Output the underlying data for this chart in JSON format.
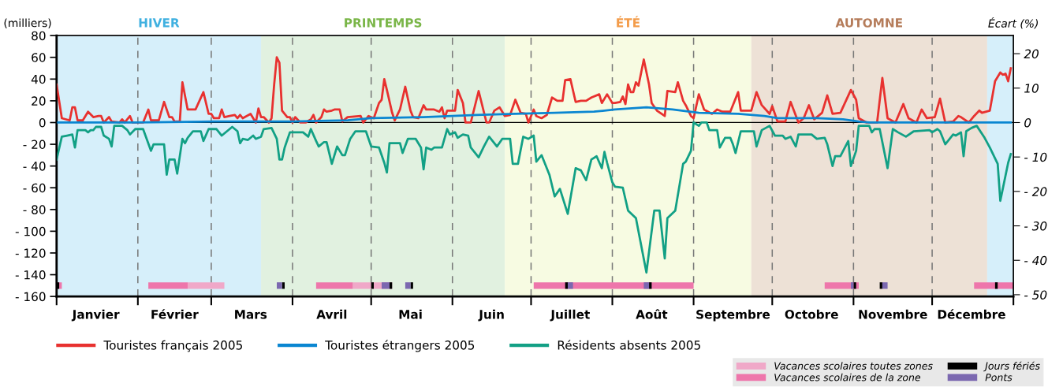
{
  "chart_data": {
    "type": "line",
    "ylabel": "(milliers)",
    "y2label": "Écart (%)",
    "xlim": [
      "2005-01-01",
      "2006-01-01"
    ],
    "xticks": [
      {
        "value": "2005-01-01",
        "label": null
      },
      {
        "value": "2005-02-01",
        "label": null
      },
      {
        "value": "2005-03-01",
        "label": null
      },
      {
        "value": "2005-04-01",
        "label": null
      },
      {
        "value": "2005-05-01",
        "label": null
      },
      {
        "value": "2005-06-01",
        "label": null
      },
      {
        "value": "2005-07-01",
        "label": null
      },
      {
        "value": "2005-08-01",
        "label": null
      },
      {
        "value": "2005-09-01",
        "label": null
      },
      {
        "value": "2005-10-01",
        "label": null
      },
      {
        "value": "2005-11-01",
        "label": null
      },
      {
        "value": "2005-12-01",
        "label": null
      },
      {
        "value": "2006-01-01",
        "label": null
      },
      {
        "value": "2005-01-16",
        "label": "Janvier"
      },
      {
        "value": "2005-02-15",
        "label": "Février"
      },
      {
        "value": "2005-03-16",
        "label": "Mars"
      },
      {
        "value": "2005-04-16",
        "label": "Avril"
      },
      {
        "value": "2005-05-16",
        "label": "Mai"
      },
      {
        "value": "2005-06-16",
        "label": "Juin"
      },
      {
        "value": "2005-07-16",
        "label": "Juillet"
      },
      {
        "value": "2005-08-16",
        "label": "Août"
      },
      {
        "value": "2005-09-16",
        "label": "Septembre"
      },
      {
        "value": "2005-10-16",
        "label": "Octobre"
      },
      {
        "value": "2005-11-16",
        "label": "Novembre"
      },
      {
        "value": "2005-12-16",
        "label": "Décembre"
      }
    ],
    "ylim": [
      -160,
      80
    ],
    "yticks": [
      {
        "value": -160,
        "label": "- 160"
      },
      {
        "value": -140,
        "label": "- 140"
      },
      {
        "value": -120,
        "label": "- 120"
      },
      {
        "value": -100,
        "label": "- 100"
      },
      {
        "value": -80,
        "label": "- 80"
      },
      {
        "value": -60,
        "label": "- 60"
      },
      {
        "value": -40,
        "label": "- 40"
      },
      {
        "value": -20,
        "label": "- 20"
      },
      {
        "value": 0,
        "label": "0"
      },
      {
        "value": 20,
        "label": "20"
      },
      {
        "value": 40,
        "label": "40"
      },
      {
        "value": 60,
        "label": "60"
      },
      {
        "value": 80,
        "label": "80"
      }
    ],
    "y2lim": [
      -50.5,
      25.25
    ],
    "y2ticks": [
      {
        "value": -50,
        "label": "- 50"
      },
      {
        "value": -40,
        "label": "- 40"
      },
      {
        "value": -30,
        "label": "- 30"
      },
      {
        "value": -20,
        "label": "- 20"
      },
      {
        "value": -10,
        "label": "- 10"
      },
      {
        "value": 0,
        "label": "0"
      },
      {
        "value": 10,
        "label": "10"
      },
      {
        "value": 20,
        "label": "20"
      }
    ],
    "legend": "bottom",
    "bands": [
      {
        "axis": "x",
        "from": "2005-01-01",
        "to": "2005-03-20",
        "label": "HIVER",
        "color": "#d6effa"
      },
      {
        "axis": "x",
        "from": "2005-03-20",
        "to": "2005-06-21",
        "label": "PRINTEMPS",
        "color": "#e1f1e0"
      },
      {
        "axis": "x",
        "from": "2005-06-21",
        "to": "2005-09-23",
        "label": "ÉTÉ",
        "color": "#f7fbe2"
      },
      {
        "axis": "x",
        "from": "2005-09-23",
        "to": "2005-12-22",
        "label": "AUTOMNE",
        "color": "#ede1d6"
      },
      {
        "axis": "x",
        "from": "2005-12-22",
        "to": "2006-01-01",
        "label": null,
        "color": "#d6effa"
      }
    ],
    "ref_lines": [
      {
        "axis": "x",
        "value": "2005-02-01",
        "color": "#777777",
        "line_style": "dashed"
      },
      {
        "axis": "x",
        "value": "2005-03-01",
        "color": "#777777",
        "line_style": "dashed"
      },
      {
        "axis": "x",
        "value": "2005-04-01",
        "color": "#777777",
        "line_style": "dashed"
      },
      {
        "axis": "x",
        "value": "2005-05-01",
        "color": "#777777",
        "line_style": "dashed"
      },
      {
        "axis": "x",
        "value": "2005-06-01",
        "color": "#777777",
        "line_style": "dashed"
      },
      {
        "axis": "x",
        "value": "2005-07-01",
        "color": "#777777",
        "line_style": "dashed"
      },
      {
        "axis": "x",
        "value": "2005-08-01",
        "color": "#777777",
        "line_style": "dashed"
      },
      {
        "axis": "x",
        "value": "2005-09-01",
        "color": "#777777",
        "line_style": "dashed"
      },
      {
        "axis": "x",
        "value": "2005-10-01",
        "color": "#777777",
        "line_style": "dashed"
      },
      {
        "axis": "x",
        "value": "2005-11-01",
        "color": "#777777",
        "line_style": "dashed"
      },
      {
        "axis": "x",
        "value": "2005-12-01",
        "color": "#777777",
        "line_style": "dashed"
      }
    ],
    "series": [
      {
        "name": "Touristes français 2005",
        "color": "#e8312f",
        "x": [
          "2005-01-01",
          "2005-01-03",
          "2005-01-06",
          "2005-01-07",
          "2005-01-08",
          "2005-01-09",
          "2005-01-11",
          "2005-01-13",
          "2005-01-15",
          "2005-01-17",
          "2005-01-18",
          "2005-01-19",
          "2005-01-21",
          "2005-01-22",
          "2005-01-25",
          "2005-01-26",
          "2005-01-27",
          "2005-01-29",
          "2005-01-30",
          "2005-02-03",
          "2005-02-05",
          "2005-02-06",
          "2005-02-09",
          "2005-02-11",
          "2005-02-13",
          "2005-02-14",
          "2005-02-15",
          "2005-02-17",
          "2005-02-18",
          "2005-02-20",
          "2005-02-23",
          "2005-02-26",
          "2005-02-28",
          "2005-03-01",
          "2005-03-02",
          "2005-03-04",
          "2005-03-05",
          "2005-03-06",
          "2005-03-08",
          "2005-03-10",
          "2005-03-11",
          "2005-03-12",
          "2005-03-13",
          "2005-03-16",
          "2005-03-18",
          "2005-03-19",
          "2005-03-20",
          "2005-03-21",
          "2005-03-23",
          "2005-03-24",
          "2005-03-25",
          "2005-03-26",
          "2005-03-27",
          "2005-03-28",
          "2005-03-30",
          "2005-03-31",
          "2005-04-01",
          "2005-04-02",
          "2005-04-04",
          "2005-04-06",
          "2005-04-08",
          "2005-04-09",
          "2005-04-10",
          "2005-04-12",
          "2005-04-13",
          "2005-04-14",
          "2005-04-16",
          "2005-04-17",
          "2005-04-19",
          "2005-04-20",
          "2005-04-22",
          "2005-04-27",
          "2005-04-28",
          "2005-04-30",
          "2005-05-02",
          "2005-05-04",
          "2005-05-05",
          "2005-05-06",
          "2005-05-07",
          "2005-05-09",
          "2005-05-10",
          "2005-05-12",
          "2005-05-14",
          "2005-05-16",
          "2005-05-17",
          "2005-05-19",
          "2005-05-21",
          "2005-05-22",
          "2005-05-25",
          "2005-05-27",
          "2005-05-28",
          "2005-05-29",
          "2005-05-30",
          "2005-06-02",
          "2005-06-03",
          "2005-06-05",
          "2005-06-06",
          "2005-06-08",
          "2005-06-11",
          "2005-06-14",
          "2005-06-15",
          "2005-06-17",
          "2005-06-19",
          "2005-06-20",
          "2005-06-21",
          "2005-06-23",
          "2005-06-25",
          "2005-06-27",
          "2005-06-29",
          "2005-06-30",
          "2005-07-02",
          "2005-07-03",
          "2005-07-05",
          "2005-07-07",
          "2005-07-09",
          "2005-07-11",
          "2005-07-13",
          "2005-07-14",
          "2005-07-16",
          "2005-07-18",
          "2005-07-20",
          "2005-07-22",
          "2005-07-24",
          "2005-07-27",
          "2005-07-28",
          "2005-07-30",
          "2005-08-01",
          "2005-08-02",
          "2005-08-04",
          "2005-08-05",
          "2005-08-06",
          "2005-08-07",
          "2005-08-08",
          "2005-08-09",
          "2005-08-10",
          "2005-08-11",
          "2005-08-13",
          "2005-08-15",
          "2005-08-16",
          "2005-08-18",
          "2005-08-21",
          "2005-08-22",
          "2005-08-25",
          "2005-08-26",
          "2005-08-28",
          "2005-08-29",
          "2005-08-31",
          "2005-09-01",
          "2005-09-03",
          "2005-09-05",
          "2005-09-08",
          "2005-09-10",
          "2005-09-12",
          "2005-09-15",
          "2005-09-18",
          "2005-09-19",
          "2005-09-23",
          "2005-09-25",
          "2005-09-27",
          "2005-09-30",
          "2005-10-01",
          "2005-10-03",
          "2005-10-06",
          "2005-10-08",
          "2005-10-11",
          "2005-10-13",
          "2005-10-15",
          "2005-10-17",
          "2005-10-20",
          "2005-10-22",
          "2005-10-24",
          "2005-10-27",
          "2005-10-31",
          "2005-11-02",
          "2005-11-03",
          "2005-11-06",
          "2005-11-10",
          "2005-11-12",
          "2005-11-14",
          "2005-11-17",
          "2005-11-20",
          "2005-11-22",
          "2005-11-25",
          "2005-11-27",
          "2005-11-29",
          "2005-12-02",
          "2005-12-04",
          "2005-12-06",
          "2005-12-09",
          "2005-12-11",
          "2005-12-12",
          "2005-12-15",
          "2005-12-17",
          "2005-12-19",
          "2005-12-20",
          "2005-12-23",
          "2005-12-25",
          "2005-12-27",
          "2005-12-28",
          "2005-12-29",
          "2005-12-30",
          "2005-12-31"
        ],
        "values": [
          35,
          4,
          2,
          14,
          14,
          2,
          2,
          10,
          5,
          6,
          6,
          0,
          5,
          1,
          0,
          3,
          0,
          6,
          0,
          0,
          12,
          2,
          2,
          19,
          5,
          5,
          1,
          1,
          37,
          12,
          12,
          28,
          8,
          8,
          4,
          4,
          12,
          5,
          6,
          7,
          4,
          7,
          4,
          8,
          0,
          13,
          5,
          5,
          0,
          4,
          35,
          60,
          55,
          11,
          5,
          5,
          0,
          5,
          0,
          0,
          3,
          7,
          0,
          5,
          12,
          10,
          11,
          12,
          12,
          1,
          5,
          6,
          0,
          6,
          4,
          18,
          21,
          40,
          30,
          9,
          2,
          12,
          33,
          11,
          5,
          4,
          16,
          12,
          12,
          10,
          14,
          4,
          11,
          11,
          30,
          18,
          0,
          0,
          29,
          0,
          0,
          11,
          14,
          10,
          6,
          7,
          21,
          9,
          8,
          0,
          12,
          6,
          4,
          7,
          23,
          20,
          20,
          39,
          40,
          19,
          20,
          20,
          23,
          26,
          18,
          26,
          18,
          18,
          19,
          24,
          17,
          35,
          28,
          28,
          37,
          34,
          58,
          35,
          18,
          11,
          6,
          29,
          28,
          37,
          20,
          16,
          6,
          4,
          26,
          12,
          8,
          12,
          10,
          10,
          28,
          11,
          11,
          28,
          16,
          8,
          15,
          1,
          1,
          19,
          0,
          4,
          16,
          3,
          9,
          25,
          8,
          9,
          30,
          21,
          4,
          0,
          0,
          41,
          4,
          0,
          17,
          4,
          0,
          12,
          4,
          5,
          22,
          0,
          1,
          6,
          5,
          0,
          6,
          11,
          9,
          11,
          38,
          46,
          44,
          45,
          38,
          50
        ]
      },
      {
        "name": "Touristes étrangers 2005",
        "color": "#0a86d1",
        "x": [
          "2005-01-01",
          "2005-01-31",
          "2005-03-02",
          "2005-04-01",
          "2005-04-22",
          "2005-05-01",
          "2005-05-21",
          "2005-06-10",
          "2005-06-25",
          "2005-07-10",
          "2005-07-25",
          "2005-08-02",
          "2005-08-14",
          "2005-08-24",
          "2005-09-03",
          "2005-09-18",
          "2005-09-28",
          "2005-10-03",
          "2005-10-18",
          "2005-10-28",
          "2005-11-03",
          "2005-11-07",
          "2005-12-31"
        ],
        "values": [
          0,
          0,
          1,
          1,
          2,
          4,
          5,
          7,
          8,
          9,
          10,
          12,
          14,
          12,
          9,
          8,
          6,
          4,
          4,
          3,
          1,
          0,
          0
        ]
      },
      {
        "name": "Résidents absents 2005",
        "color": "#12a085",
        "x": [
          "2005-01-01",
          "2005-01-03",
          "2005-01-05",
          "2005-01-07",
          "2005-01-08",
          "2005-01-09",
          "2005-01-12",
          "2005-01-13",
          "2005-01-14",
          "2005-01-15",
          "2005-01-16",
          "2005-01-18",
          "2005-01-19",
          "2005-01-21",
          "2005-01-22",
          "2005-01-23",
          "2005-01-26",
          "2005-01-28",
          "2005-01-29",
          "2005-01-31",
          "2005-02-03",
          "2005-02-06",
          "2005-02-07",
          "2005-02-11",
          "2005-02-12",
          "2005-02-13",
          "2005-02-15",
          "2005-02-16",
          "2005-02-18",
          "2005-02-19",
          "2005-02-20",
          "2005-02-22",
          "2005-02-25",
          "2005-02-26",
          "2005-02-28",
          "2005-03-03",
          "2005-03-05",
          "2005-03-09",
          "2005-03-11",
          "2005-03-12",
          "2005-03-13",
          "2005-03-15",
          "2005-03-17",
          "2005-03-18",
          "2005-03-20",
          "2005-03-21",
          "2005-03-24",
          "2005-03-26",
          "2005-03-27",
          "2005-03-28",
          "2005-03-29",
          "2005-03-31",
          "2005-04-05",
          "2005-04-07",
          "2005-04-08",
          "2005-04-10",
          "2005-04-11",
          "2005-04-13",
          "2005-04-14",
          "2005-04-16",
          "2005-04-18",
          "2005-04-20",
          "2005-04-21",
          "2005-04-23",
          "2005-04-25",
          "2005-04-29",
          "2005-05-01",
          "2005-05-04",
          "2005-05-06",
          "2005-05-07",
          "2005-05-08",
          "2005-05-12",
          "2005-05-13",
          "2005-05-15",
          "2005-05-18",
          "2005-05-20",
          "2005-05-21",
          "2005-05-22",
          "2005-05-24",
          "2005-05-25",
          "2005-05-28",
          "2005-05-30",
          "2005-05-31",
          "2005-06-02",
          "2005-06-03",
          "2005-06-05",
          "2005-06-07",
          "2005-06-08",
          "2005-06-11",
          "2005-06-13",
          "2005-06-15",
          "2005-06-18",
          "2005-06-20",
          "2005-06-23",
          "2005-06-24",
          "2005-06-26",
          "2005-06-28",
          "2005-06-30",
          "2005-07-02",
          "2005-07-03",
          "2005-07-05",
          "2005-07-08",
          "2005-07-10",
          "2005-07-12",
          "2005-07-15",
          "2005-07-18",
          "2005-07-20",
          "2005-07-22",
          "2005-07-24",
          "2005-07-26",
          "2005-07-28",
          "2005-07-29",
          "2005-07-30",
          "2005-08-01",
          "2005-08-02",
          "2005-08-05",
          "2005-08-07",
          "2005-08-10",
          "2005-08-14",
          "2005-08-17",
          "2005-08-19",
          "2005-08-21",
          "2005-08-22",
          "2005-08-25",
          "2005-08-28",
          "2005-08-29",
          "2005-08-31",
          "2005-09-01",
          "2005-09-03",
          "2005-09-04",
          "2005-09-06",
          "2005-09-07",
          "2005-09-10",
          "2005-09-11",
          "2005-09-13",
          "2005-09-15",
          "2005-09-16",
          "2005-09-17",
          "2005-09-19",
          "2005-09-24",
          "2005-09-25",
          "2005-09-27",
          "2005-09-30",
          "2005-10-02",
          "2005-10-05",
          "2005-10-06",
          "2005-10-08",
          "2005-10-10",
          "2005-10-11",
          "2005-10-16",
          "2005-10-18",
          "2005-10-21",
          "2005-10-22",
          "2005-10-24",
          "2005-10-25",
          "2005-10-27",
          "2005-10-30",
          "2005-10-31",
          "2005-11-02",
          "2005-11-03",
          "2005-11-07",
          "2005-11-08",
          "2005-11-09",
          "2005-11-11",
          "2005-11-14",
          "2005-11-16",
          "2005-11-18",
          "2005-11-21",
          "2005-11-24",
          "2005-11-30",
          "2005-12-01",
          "2005-12-03",
          "2005-12-04",
          "2005-12-06",
          "2005-12-09",
          "2005-12-10",
          "2005-12-12",
          "2005-12-13",
          "2005-12-14",
          "2005-12-16",
          "2005-12-18",
          "2005-12-21",
          "2005-12-23",
          "2005-12-26",
          "2005-12-27",
          "2005-12-30",
          "2005-12-31"
        ],
        "values": [
          -34,
          -13,
          -12,
          -11,
          -23,
          -7,
          -7,
          -9,
          -7,
          -7,
          -4,
          -4,
          -12,
          -15,
          -22,
          -3,
          -3,
          -7,
          -11,
          -6,
          -6,
          -26,
          -20,
          -20,
          -48,
          -34,
          -34,
          -47,
          -15,
          -19,
          -14,
          -8,
          -8,
          -17,
          -6,
          -6,
          -12,
          -4,
          -8,
          -19,
          -15,
          -16,
          -12,
          -15,
          -13,
          -6,
          -5,
          -15,
          -34,
          -34,
          -23,
          -9,
          -9,
          -13,
          -6,
          -17,
          -22,
          -18,
          -18,
          -38,
          -22,
          -30,
          -30,
          -15,
          -8,
          -8,
          -22,
          -23,
          -37,
          -46,
          -19,
          -19,
          -28,
          -15,
          -15,
          -23,
          -43,
          -23,
          -25,
          -23,
          -23,
          -6,
          -11,
          -9,
          -14,
          -11,
          -12,
          -23,
          -32,
          -22,
          -13,
          -22,
          -15,
          -15,
          -38,
          -38,
          -13,
          -15,
          -12,
          -36,
          -30,
          -48,
          -68,
          -61,
          -84,
          -42,
          -44,
          -53,
          -34,
          -31,
          -42,
          -27,
          -37,
          -55,
          -59,
          -60,
          -81,
          -88,
          -138,
          -81,
          -81,
          -125,
          -88,
          -81,
          -38,
          -36,
          -26,
          0,
          -3,
          0,
          0,
          -7,
          -7,
          -23,
          -14,
          -14,
          -20,
          -28,
          -8,
          -8,
          -22,
          -7,
          -3,
          -12,
          -12,
          -15,
          -13,
          -22,
          -11,
          -11,
          -15,
          -14,
          -20,
          -40,
          -31,
          -31,
          -17,
          -40,
          -26,
          -3,
          -3,
          -9,
          -6,
          -6,
          -42,
          -6,
          -9,
          -13,
          -8,
          -7,
          -9,
          -6,
          -8,
          -20,
          -11,
          -12,
          -9,
          -31,
          -8,
          -5,
          -3,
          -14,
          -23,
          -38,
          -72,
          -37,
          -29
        ]
      },
      {
        "name": "Vacances scolaires toutes zones",
        "type": "area",
        "color": "#f0a8c8",
        "x": [
          "2005-02-20",
          "2005-02-20",
          "2005-03-06",
          "2005-03-06"
        ],
        "values": [
          -153,
          -147,
          -147,
          -153
        ]
      },
      {
        "type": "area",
        "color": "#f0a8c8",
        "x": [
          "2005-04-24",
          "2005-04-24",
          "2005-05-09",
          "2005-05-09"
        ],
        "values": [
          -153,
          -147,
          -147,
          -153
        ]
      },
      {
        "name": "Vacances scolaires de la zone",
        "type": "area",
        "color": "#ee76ab",
        "x": [
          "2005-01-01",
          "2005-01-01",
          "2005-01-03",
          "2005-01-03"
        ],
        "values": [
          -153,
          -147,
          -147,
          -153
        ]
      },
      {
        "type": "area",
        "color": "#ee76ab",
        "x": [
          "2005-02-05",
          "2005-02-05",
          "2005-02-20",
          "2005-02-20"
        ],
        "values": [
          -153,
          -147,
          -147,
          -153
        ]
      },
      {
        "type": "area",
        "color": "#ee76ab",
        "x": [
          "2005-04-10",
          "2005-04-10",
          "2005-04-24",
          "2005-04-24"
        ],
        "values": [
          -153,
          -147,
          -147,
          -153
        ]
      },
      {
        "type": "area",
        "color": "#ee76ab",
        "x": [
          "2005-07-02",
          "2005-07-02",
          "2005-09-01",
          "2005-09-01"
        ],
        "values": [
          -153,
          -147,
          -147,
          -153
        ]
      },
      {
        "type": "area",
        "color": "#ee76ab",
        "x": [
          "2005-10-21",
          "2005-10-21",
          "2005-11-03",
          "2005-11-03"
        ],
        "values": [
          -153,
          -147,
          -147,
          -153
        ]
      },
      {
        "type": "area",
        "color": "#ee76ab",
        "x": [
          "2005-12-17",
          "2005-12-17",
          "2006-01-01",
          "2006-01-01"
        ],
        "values": [
          -153,
          -147,
          -147,
          -153
        ]
      },
      {
        "name": "Jours fériés",
        "type": "area",
        "color": "#000000",
        "x": [
          "2005-01-01",
          "2005-01-01",
          "2005-01-02",
          "2005-01-02"
        ],
        "values": [
          -153,
          -147,
          -147,
          -153
        ]
      },
      {
        "type": "area",
        "color": "#000000",
        "x": [
          "2005-03-28",
          "2005-03-28",
          "2005-03-29",
          "2005-03-29"
        ],
        "values": [
          -153,
          -147,
          -147,
          -153
        ]
      },
      {
        "type": "area",
        "color": "#000000",
        "x": [
          "2005-05-01",
          "2005-05-01",
          "2005-05-02",
          "2005-05-02"
        ],
        "values": [
          -153,
          -147,
          -147,
          -153
        ]
      },
      {
        "type": "area",
        "color": "#000000",
        "x": [
          "2005-05-08",
          "2005-05-08",
          "2005-05-09",
          "2005-05-09"
        ],
        "values": [
          -153,
          -147,
          -147,
          -153
        ]
      },
      {
        "type": "area",
        "color": "#000000",
        "x": [
          "2005-05-16",
          "2005-05-16",
          "2005-05-17",
          "2005-05-17"
        ],
        "values": [
          -153,
          -147,
          -147,
          -153
        ]
      },
      {
        "type": "area",
        "color": "#000000",
        "x": [
          "2005-07-14",
          "2005-07-14",
          "2005-07-15",
          "2005-07-15"
        ],
        "values": [
          -153,
          -147,
          -147,
          -153
        ]
      },
      {
        "type": "area",
        "color": "#000000",
        "x": [
          "2005-08-15",
          "2005-08-15",
          "2005-08-16",
          "2005-08-16"
        ],
        "values": [
          -153,
          -147,
          -147,
          -153
        ]
      },
      {
        "type": "area",
        "color": "#000000",
        "x": [
          "2005-11-01",
          "2005-11-01",
          "2005-11-02",
          "2005-11-02"
        ],
        "values": [
          -153,
          -147,
          -147,
          -153
        ]
      },
      {
        "type": "area",
        "color": "#000000",
        "x": [
          "2005-11-11",
          "2005-11-11",
          "2005-11-12",
          "2005-11-12"
        ],
        "values": [
          -153,
          -147,
          -147,
          -153
        ]
      },
      {
        "type": "area",
        "color": "#000000",
        "x": [
          "2005-12-25",
          "2005-12-25",
          "2005-12-26",
          "2005-12-26"
        ],
        "values": [
          -153,
          -147,
          -147,
          -153
        ]
      },
      {
        "name": "Ponts",
        "type": "area",
        "color": "#7b68b0",
        "x": [
          "2005-03-26",
          "2005-03-26",
          "2005-03-28",
          "2005-03-28"
        ],
        "values": [
          -153,
          -147,
          -147,
          -153
        ]
      },
      {
        "type": "area",
        "color": "#7b68b0",
        "x": [
          "2005-05-05",
          "2005-05-05",
          "2005-05-08",
          "2005-05-08"
        ],
        "values": [
          -153,
          -147,
          -147,
          -153
        ]
      },
      {
        "type": "area",
        "color": "#7b68b0",
        "x": [
          "2005-05-14",
          "2005-05-14",
          "2005-05-16",
          "2005-05-16"
        ],
        "values": [
          -153,
          -147,
          -147,
          -153
        ]
      },
      {
        "type": "area",
        "color": "#7b68b0",
        "x": [
          "2005-07-15",
          "2005-07-15",
          "2005-07-17",
          "2005-07-17"
        ],
        "values": [
          -153,
          -147,
          -147,
          -153
        ]
      },
      {
        "type": "area",
        "color": "#7b68b0",
        "x": [
          "2005-08-13",
          "2005-08-13",
          "2005-08-15",
          "2005-08-15"
        ],
        "values": [
          -153,
          -147,
          -147,
          -153
        ]
      },
      {
        "type": "area",
        "color": "#7b68b0",
        "x": [
          "2005-10-31",
          "2005-10-31",
          "2005-11-01",
          "2005-11-01"
        ],
        "values": [
          -153,
          -147,
          -147,
          -153
        ]
      },
      {
        "type": "area",
        "color": "#7b68b0",
        "x": [
          "2005-11-12",
          "2005-11-12",
          "2005-11-14",
          "2005-11-14"
        ],
        "values": [
          -153,
          -147,
          -147,
          -153
        ]
      }
    ]
  }
}
